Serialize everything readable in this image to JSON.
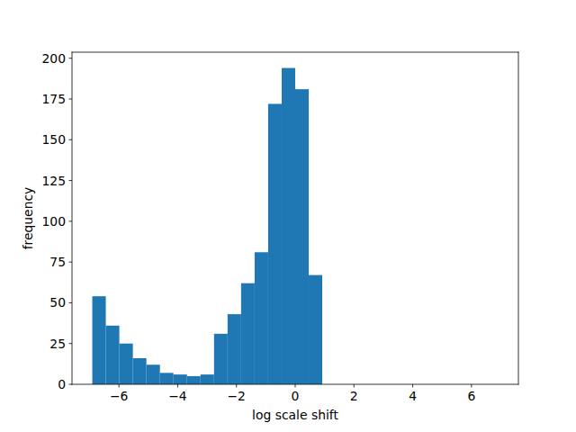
{
  "chart_data": {
    "type": "histogram",
    "x_label": "log scale shift",
    "y_label": "frequency",
    "bins": [
      -6.9078,
      -6.4472,
      -5.9867,
      -5.5262,
      -5.0657,
      -4.6052,
      -4.1447,
      -3.6841,
      -3.2236,
      -2.7631,
      -2.3026,
      -1.8421,
      -1.3816,
      -0.921,
      -0.4605,
      0,
      0.4605,
      0.921,
      1.3816,
      1.8421,
      2.3026,
      2.7631,
      3.2236,
      3.6841,
      4.1447,
      4.6052,
      5.0657,
      5.5262,
      5.9867,
      6.4472,
      6.9078
    ],
    "values": [
      54,
      36,
      25,
      16,
      12,
      7,
      6,
      5,
      6,
      31,
      43,
      62,
      81,
      172,
      194,
      181,
      67,
      0,
      0,
      0,
      0,
      0,
      0,
      0,
      0,
      0,
      0,
      0,
      0,
      0
    ],
    "color": "#1f77b4",
    "xlim": [
      -7.598,
      7.598
    ],
    "ylim": [
      0,
      203.7
    ],
    "xticks": [
      {
        "value": -6,
        "label": "−6"
      },
      {
        "value": -4,
        "label": "−4"
      },
      {
        "value": -2,
        "label": "−2"
      },
      0,
      2,
      4,
      6
    ],
    "yticks": [
      0,
      25,
      50,
      75,
      100,
      125,
      150,
      175,
      200
    ],
    "grid": false
  }
}
